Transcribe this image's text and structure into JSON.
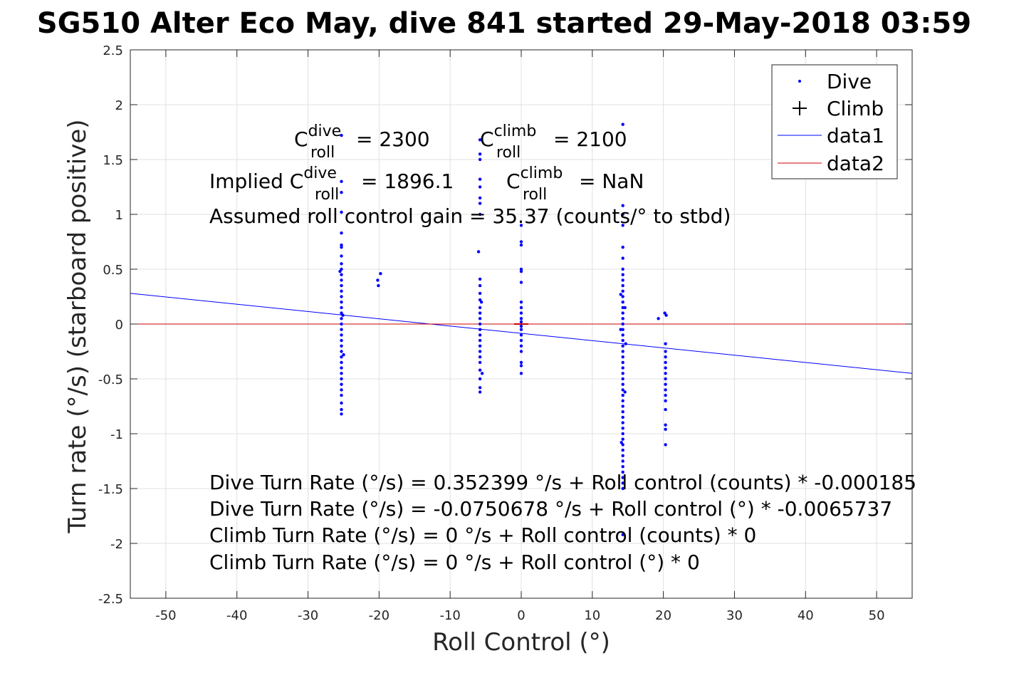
{
  "chart_data": {
    "type": "scatter",
    "title": "SG510 Alter Eco May, dive 841 started 29-May-2018 03:59",
    "xlabel": "Roll Control (°)",
    "ylabel": "Turn rate (°/s) (starboard positive)",
    "xlim": [
      -55,
      55
    ],
    "ylim": [
      -2.5,
      2.5
    ],
    "xticks": [
      -50,
      -40,
      -30,
      -20,
      -10,
      0,
      10,
      20,
      30,
      40,
      50
    ],
    "yticks": [
      -2.5,
      -2,
      -1.5,
      -1,
      -0.5,
      0,
      0.5,
      1,
      1.5,
      2,
      2.5
    ],
    "xtick_labels": [
      "-50",
      "-40",
      "-30",
      "-20",
      "-10",
      "0",
      "10",
      "20",
      "30",
      "40",
      "50"
    ],
    "ytick_labels": [
      "-2.5",
      "-2",
      "-1.5",
      "-1",
      "-0.5",
      "0",
      "0.5",
      "1",
      "1.5",
      "2",
      "2.5"
    ],
    "grid": true,
    "legend_position": "top-right",
    "legend": [
      "Dive",
      "Climb",
      "data1",
      "data2"
    ],
    "colors": {
      "dive": "#0000ff",
      "climb": "#000000",
      "data1": "#0000ff",
      "data2": "#cc0000",
      "grid": "#e0e0e0",
      "axis": "#262626"
    },
    "series": [
      {
        "name": "Dive",
        "marker": "point",
        "points": [
          [
            -25.3,
            1.72
          ],
          [
            -25.3,
            1.3
          ],
          [
            -25.3,
            1.2
          ],
          [
            -25.3,
            1.02
          ],
          [
            -25.3,
            0.83
          ],
          [
            -25.3,
            0.72
          ],
          [
            -25.3,
            0.7
          ],
          [
            -25.3,
            0.62
          ],
          [
            -25.3,
            0.55
          ],
          [
            -25.3,
            0.5
          ],
          [
            -25.3,
            0.45
          ],
          [
            -25.3,
            0.4
          ],
          [
            -25.3,
            0.35
          ],
          [
            -25.3,
            0.3
          ],
          [
            -25.3,
            0.25
          ],
          [
            -25.3,
            0.2
          ],
          [
            -25.3,
            0.15
          ],
          [
            -25.3,
            0.1
          ],
          [
            -25.3,
            0.05
          ],
          [
            -25.3,
            0.0
          ],
          [
            -25.3,
            -0.05
          ],
          [
            -25.3,
            -0.1
          ],
          [
            -25.3,
            -0.15
          ],
          [
            -25.3,
            -0.2
          ],
          [
            -25.3,
            -0.25
          ],
          [
            -25.3,
            -0.3
          ],
          [
            -25.3,
            -0.35
          ],
          [
            -25.3,
            -0.4
          ],
          [
            -25.3,
            -0.45
          ],
          [
            -25.3,
            -0.5
          ],
          [
            -25.3,
            -0.55
          ],
          [
            -25.3,
            -0.6
          ],
          [
            -25.3,
            -0.65
          ],
          [
            -25.3,
            -0.72
          ],
          [
            -25.3,
            -0.78
          ],
          [
            -25.3,
            -0.82
          ],
          [
            -25.0,
            -0.28
          ],
          [
            -25.5,
            0.48
          ],
          [
            -25.1,
            0.08
          ],
          [
            -19.8,
            0.46
          ],
          [
            -20.2,
            0.4
          ],
          [
            -20.1,
            0.35
          ],
          [
            -5.8,
            1.68
          ],
          [
            -5.8,
            1.55
          ],
          [
            -5.8,
            1.5
          ],
          [
            -5.8,
            1.32
          ],
          [
            -5.8,
            1.25
          ],
          [
            -5.8,
            1.15
          ],
          [
            -5.8,
            1.1
          ],
          [
            -5.8,
            1.0
          ],
          [
            -6.0,
            0.66
          ],
          [
            -5.8,
            0.41
          ],
          [
            -5.8,
            0.35
          ],
          [
            -5.8,
            0.28
          ],
          [
            -5.8,
            0.22
          ],
          [
            -5.8,
            0.15
          ],
          [
            -5.8,
            0.1
          ],
          [
            -5.8,
            0.05
          ],
          [
            -5.8,
            0.0
          ],
          [
            -5.8,
            -0.05
          ],
          [
            -5.8,
            -0.1
          ],
          [
            -5.8,
            -0.15
          ],
          [
            -5.8,
            -0.2
          ],
          [
            -5.8,
            -0.25
          ],
          [
            -5.8,
            -0.3
          ],
          [
            -5.8,
            -0.35
          ],
          [
            -5.8,
            -0.42
          ],
          [
            -5.8,
            -0.5
          ],
          [
            -5.8,
            -0.58
          ],
          [
            -5.8,
            -0.62
          ],
          [
            -5.5,
            -0.45
          ],
          [
            -5.6,
            0.2
          ],
          [
            0.0,
            0.9
          ],
          [
            0.0,
            0.75
          ],
          [
            0.0,
            0.72
          ],
          [
            0.0,
            0.5
          ],
          [
            0.0,
            0.48
          ],
          [
            0.0,
            0.38
          ],
          [
            0.0,
            0.2
          ],
          [
            0.0,
            0.15
          ],
          [
            0.0,
            0.1
          ],
          [
            0.0,
            0.05
          ],
          [
            0.0,
            0.02
          ],
          [
            0.0,
            -0.02
          ],
          [
            0.0,
            -0.05
          ],
          [
            0.0,
            -0.1
          ],
          [
            0.0,
            -0.15
          ],
          [
            0.0,
            -0.2
          ],
          [
            0.0,
            -0.25
          ],
          [
            0.0,
            -0.35
          ],
          [
            0.0,
            -0.38
          ],
          [
            0.0,
            -0.45
          ],
          [
            14.3,
            1.82
          ],
          [
            14.3,
            1.08
          ],
          [
            14.3,
            1.0
          ],
          [
            14.3,
            0.9
          ],
          [
            14.3,
            0.7
          ],
          [
            14.3,
            0.6
          ],
          [
            14.3,
            0.5
          ],
          [
            14.3,
            0.45
          ],
          [
            14.3,
            0.4
          ],
          [
            14.3,
            0.35
          ],
          [
            14.3,
            0.3
          ],
          [
            14.3,
            0.25
          ],
          [
            14.3,
            0.2
          ],
          [
            14.3,
            0.15
          ],
          [
            14.3,
            0.1
          ],
          [
            14.3,
            0.05
          ],
          [
            14.3,
            0.0
          ],
          [
            14.3,
            -0.05
          ],
          [
            14.3,
            -0.1
          ],
          [
            14.3,
            -0.15
          ],
          [
            14.3,
            -0.2
          ],
          [
            14.3,
            -0.25
          ],
          [
            14.3,
            -0.3
          ],
          [
            14.3,
            -0.35
          ],
          [
            14.3,
            -0.4
          ],
          [
            14.3,
            -0.45
          ],
          [
            14.3,
            -0.5
          ],
          [
            14.3,
            -0.55
          ],
          [
            14.3,
            -0.6
          ],
          [
            14.3,
            -0.65
          ],
          [
            14.3,
            -0.7
          ],
          [
            14.3,
            -0.75
          ],
          [
            14.3,
            -0.8
          ],
          [
            14.3,
            -0.85
          ],
          [
            14.3,
            -0.9
          ],
          [
            14.3,
            -0.95
          ],
          [
            14.3,
            -1.0
          ],
          [
            14.3,
            -1.05
          ],
          [
            14.3,
            -1.1
          ],
          [
            14.3,
            -1.15
          ],
          [
            14.3,
            -1.2
          ],
          [
            14.3,
            -1.25
          ],
          [
            14.3,
            -1.3
          ],
          [
            14.3,
            -1.35
          ],
          [
            14.3,
            -1.4
          ],
          [
            14.3,
            -1.45
          ],
          [
            14.3,
            -1.5
          ],
          [
            14.3,
            -1.92
          ],
          [
            14.0,
            0.27
          ],
          [
            14.6,
            -0.62
          ],
          [
            14.0,
            -0.05
          ],
          [
            14.6,
            0.15
          ],
          [
            14.1,
            -1.08
          ],
          [
            14.7,
            -0.18
          ],
          [
            19.3,
            0.05
          ],
          [
            20.2,
            0.1
          ],
          [
            20.4,
            0.08
          ],
          [
            20.3,
            -0.18
          ],
          [
            20.3,
            -0.25
          ],
          [
            20.3,
            -0.3
          ],
          [
            20.3,
            -0.35
          ],
          [
            20.3,
            -0.4
          ],
          [
            20.3,
            -0.45
          ],
          [
            20.3,
            -0.5
          ],
          [
            20.3,
            -0.55
          ],
          [
            20.3,
            -0.6
          ],
          [
            20.3,
            -0.65
          ],
          [
            20.3,
            -0.7
          ],
          [
            20.3,
            -0.78
          ],
          [
            20.3,
            -0.92
          ],
          [
            20.3,
            -0.96
          ],
          [
            20.3,
            -1.1
          ]
        ]
      },
      {
        "name": "Climb",
        "marker": "plus",
        "points": []
      },
      {
        "name": "data1",
        "type": "line",
        "points": [
          [
            -55,
            0.28
          ],
          [
            55,
            -0.45
          ]
        ]
      },
      {
        "name": "data2",
        "type": "line",
        "points": [
          [
            -55,
            0.0
          ],
          [
            55,
            0.0
          ]
        ]
      }
    ],
    "climb_marker_segment": [
      [
        -1.0,
        0.0
      ],
      [
        1.0,
        0.0
      ]
    ],
    "annotations": {
      "c_roll_dive": {
        "base": "C",
        "sup": "dive",
        "sub": "roll",
        "value": "= 2300"
      },
      "c_roll_climb": {
        "base": "C",
        "sup": "climb",
        "sub": "roll",
        "value": "= 2100"
      },
      "implied_prefix": "Implied C",
      "implied_dive": {
        "sup": "dive",
        "sub": "roll",
        "value": "= 1896.1"
      },
      "implied_climb": {
        "base": "C",
        "sup": "climb",
        "sub": "roll",
        "value": "= NaN"
      },
      "gain": "Assumed roll control gain = 35.37 (counts/° to stbd)",
      "eq1": "Dive Turn Rate (°/s) = 0.352399 °/s + Roll control (counts) * -0.000185",
      "eq2": "Dive Turn Rate (°/s) = -0.0750678 °/s + Roll control (°) * -0.0065737",
      "eq3": "Climb Turn Rate (°/s) = 0 °/s + Roll control (counts) * 0",
      "eq4": "Climb Turn Rate (°/s) = 0 °/s + Roll control (°) * 0"
    }
  }
}
